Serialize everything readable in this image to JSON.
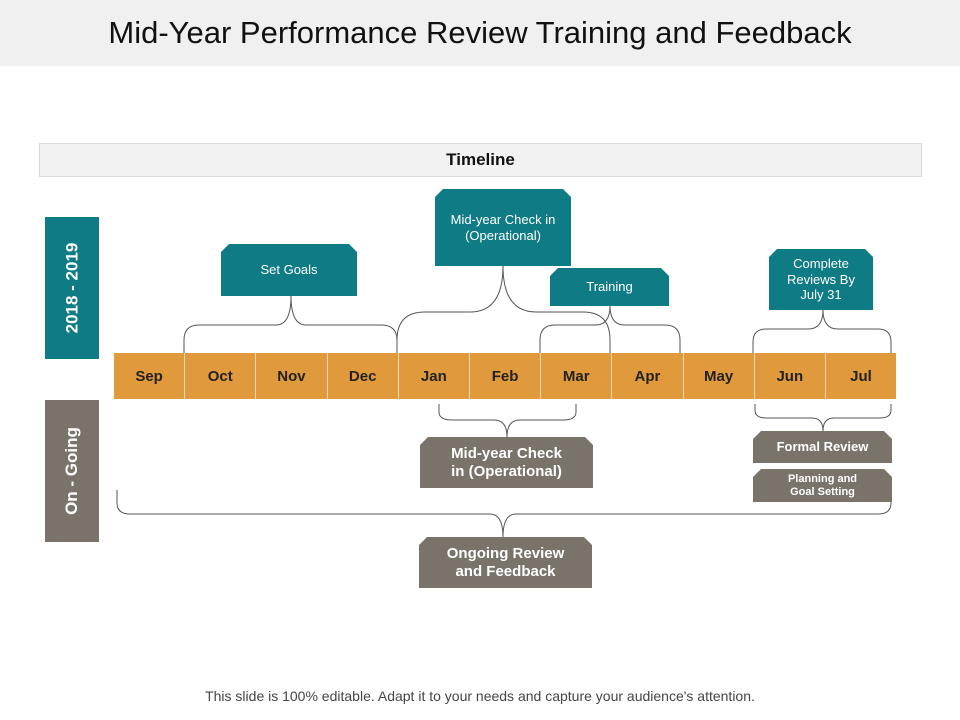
{
  "title": "Mid-Year Performance Review Training and Feedback",
  "timeline_header": "Timeline",
  "side_labels": {
    "period": "2018 - 2019",
    "ongoing": "On - Going"
  },
  "months": [
    "Sep",
    "Oct",
    "Nov",
    "Dec",
    "Jan",
    "Feb",
    "Mar",
    "Apr",
    "May",
    "Jun",
    "Jul"
  ],
  "top_tags": {
    "set_goals": "Set Goals",
    "midyear_check": "Mid-year Check in (Operational)",
    "training": "Training",
    "complete_reviews": "Complete Reviews By July 31"
  },
  "bottom_tags": {
    "midyear_check": "Mid-year Check in (Operational)",
    "formal_review": "Formal Review",
    "planning": "Planning and Goal Setting",
    "ongoing_review": "Ongoing Review and Feedback"
  },
  "colors": {
    "teal": "#0f7b84",
    "orange": "#e09a3c",
    "gray": "#7a736a",
    "line": "#555555"
  },
  "footer": "This slide is 100% editable. Adapt it to your needs and capture your audience's attention."
}
